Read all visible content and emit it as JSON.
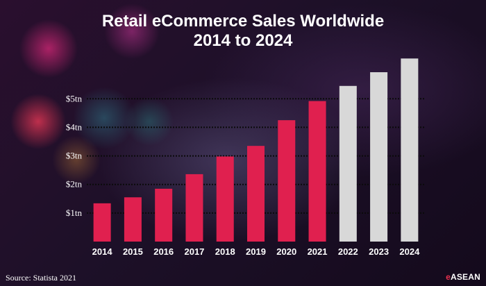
{
  "chart_data": {
    "type": "bar",
    "title": [
      "Retail eCommerce Sales Worldwide",
      "2014 to 2024"
    ],
    "categories": [
      "2014",
      "2015",
      "2016",
      "2017",
      "2018",
      "2019",
      "2020",
      "2021",
      "2022",
      "2023",
      "2024"
    ],
    "values": [
      1.34,
      1.55,
      1.85,
      2.36,
      2.98,
      3.35,
      4.25,
      4.92,
      5.45,
      5.93,
      6.41
    ],
    "forecast_from": "2022",
    "ylim": [
      0,
      7
    ],
    "yticks": [
      {
        "value": 1,
        "label": "$1tn"
      },
      {
        "value": 2,
        "label": "$2tn"
      },
      {
        "value": 3,
        "label": "$3tn"
      },
      {
        "value": 4,
        "label": "$4tn"
      },
      {
        "value": 5,
        "label": "$5tn"
      }
    ],
    "grid": true,
    "xlabel": "",
    "ylabel": "",
    "colors": {
      "actual": "#e0204f",
      "forecast": "#d8d8d8"
    }
  },
  "source": "Source: Statista 2021",
  "brand": {
    "prefix": "e",
    "name": "ASEAN"
  }
}
